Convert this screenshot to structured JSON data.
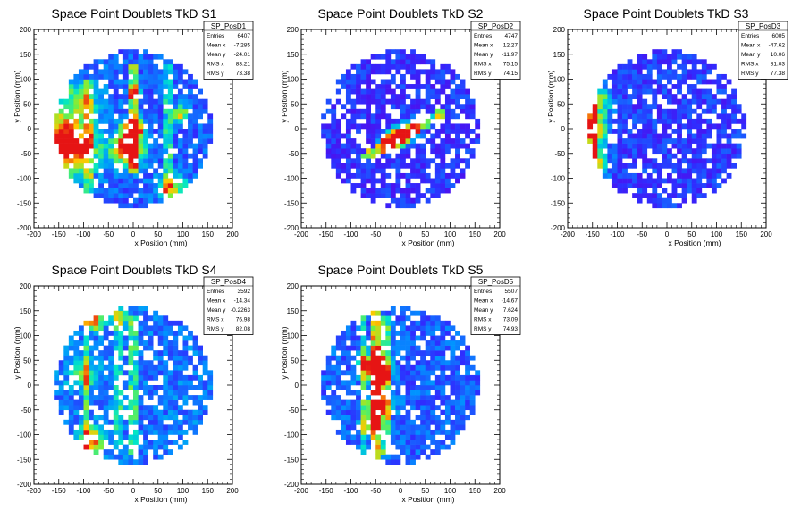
{
  "chart_data": [
    {
      "type": "heatmap",
      "title": "Space Point Doublets TkD S1",
      "xlabel": "x Position (mm)",
      "ylabel": "y Position (mm)",
      "xlim": [
        -200,
        200
      ],
      "ylim": [
        -200,
        200
      ],
      "xticks": [
        "-200",
        "-150",
        "-100",
        "-50",
        "0",
        "50",
        "100",
        "150",
        "200"
      ],
      "yticks": [
        "-200",
        "-150",
        "-100",
        "-50",
        "0",
        "50",
        "100",
        "150",
        "200"
      ],
      "stats": {
        "name": "SP_PosD1",
        "rows": [
          [
            "Entries",
            "6407"
          ],
          [
            "Mean x",
            "-7.285"
          ],
          [
            "Mean y",
            "-24.01"
          ],
          [
            "RMS x",
            "83.21"
          ],
          [
            "RMS y",
            "73.38"
          ]
        ]
      },
      "hotspots": [
        [
          -150,
          -20,
          45,
          0.55
        ],
        [
          -120,
          -40,
          35,
          0.45
        ],
        [
          0,
          0,
          14,
          0.95
        ],
        [
          -10,
          -40,
          22,
          0.85
        ],
        [
          5,
          70,
          8,
          0.6
        ],
        [
          95,
          30,
          12,
          0.5
        ],
        [
          80,
          -120,
          20,
          0.5
        ],
        [
          -110,
          60,
          25,
          0.35
        ]
      ],
      "lines": [
        [
          0,
          -80,
          0,
          120,
          0.55
        ],
        [
          -90,
          -140,
          -90,
          90,
          0.3
        ],
        [
          70,
          -120,
          70,
          120,
          0.3
        ]
      ],
      "base": 0.18,
      "sparsity": 0.12
    },
    {
      "type": "heatmap",
      "title": "Space Point Doublets TkD S2",
      "xlabel": "x Position (mm)",
      "ylabel": "y Position (mm)",
      "xlim": [
        -200,
        200
      ],
      "ylim": [
        -200,
        200
      ],
      "xticks": [
        "-200",
        "-150",
        "-100",
        "-50",
        "0",
        "50",
        "100",
        "150",
        "200"
      ],
      "yticks": [
        "-200",
        "-150",
        "-100",
        "-50",
        "0",
        "50",
        "100",
        "150",
        "200"
      ],
      "stats": {
        "name": "SP_PosD2",
        "rows": [
          [
            "Entries",
            "4747"
          ],
          [
            "Mean x",
            "12.27"
          ],
          [
            "Mean y",
            "-11.97"
          ],
          [
            "RMS x",
            "75.15"
          ],
          [
            "RMS y",
            "74.15"
          ]
        ]
      },
      "hotspots": [
        [
          0,
          -15,
          12,
          0.95
        ],
        [
          -20,
          -25,
          14,
          0.7
        ],
        [
          20,
          -5,
          14,
          0.6
        ]
      ],
      "lines": [
        [
          -70,
          -55,
          80,
          30,
          0.6
        ]
      ],
      "base": 0.08,
      "sparsity": 0.28
    },
    {
      "type": "heatmap",
      "title": "Space Point Doublets TkD S3",
      "xlabel": "x Position (mm)",
      "ylabel": "y Position (mm)",
      "xlim": [
        -200,
        200
      ],
      "ylim": [
        -200,
        200
      ],
      "xticks": [
        "-200",
        "-150",
        "-100",
        "-50",
        "0",
        "50",
        "100",
        "150",
        "200"
      ],
      "yticks": [
        "-200",
        "-150",
        "-100",
        "-50",
        "0",
        "50",
        "100",
        "150",
        "200"
      ],
      "stats": {
        "name": "SP_PosD3",
        "rows": [
          [
            "Entries",
            "6005"
          ],
          [
            "Mean x",
            "-47.62"
          ],
          [
            "Mean y",
            "10.06"
          ],
          [
            "RMS x",
            "81.03"
          ],
          [
            "RMS y",
            "77.38"
          ]
        ]
      },
      "hotspots": [
        [
          -160,
          0,
          25,
          0.9
        ],
        [
          -150,
          -70,
          20,
          0.7
        ],
        [
          -140,
          60,
          20,
          0.5
        ],
        [
          -150,
          -110,
          15,
          0.4
        ]
      ],
      "lines": [
        [
          -145,
          -120,
          -145,
          120,
          0.45
        ]
      ],
      "base": 0.1,
      "sparsity": 0.2
    },
    {
      "type": "heatmap",
      "title": "Space Point Doublets TkD S4",
      "xlabel": "x Position (mm)",
      "ylabel": "y Position (mm)",
      "xlim": [
        -200,
        200
      ],
      "ylim": [
        -200,
        200
      ],
      "xticks": [
        "-200",
        "-150",
        "-100",
        "-50",
        "0",
        "50",
        "100",
        "150",
        "200"
      ],
      "yticks": [
        "-200",
        "-150",
        "-100",
        "-50",
        "0",
        "50",
        "100",
        "150",
        "200"
      ],
      "stats": {
        "name": "SP_PosD4",
        "rows": [
          [
            "Entries",
            "3592"
          ],
          [
            "Mean x",
            "-14.34"
          ],
          [
            "Mean y",
            "-0.2263"
          ],
          [
            "RMS x",
            "76.98"
          ],
          [
            "RMS y",
            "82.08"
          ]
        ]
      },
      "hotspots": [
        [
          -85,
          -110,
          18,
          0.7
        ],
        [
          -80,
          130,
          14,
          0.6
        ],
        [
          -100,
          20,
          20,
          0.35
        ],
        [
          -30,
          140,
          12,
          0.5
        ]
      ],
      "lines": [
        [
          -95,
          -140,
          -95,
          140,
          0.35
        ],
        [
          0,
          -130,
          0,
          130,
          0.3
        ],
        [
          -30,
          -120,
          -30,
          120,
          0.25
        ]
      ],
      "base": 0.22,
      "sparsity": 0.22
    },
    {
      "type": "heatmap",
      "title": "Space Point Doublets TkD S5",
      "xlabel": "x Position (mm)",
      "ylabel": "y Position (mm)",
      "xlim": [
        -200,
        200
      ],
      "ylim": [
        -200,
        200
      ],
      "xticks": [
        "-200",
        "-150",
        "-100",
        "-50",
        "0",
        "50",
        "100",
        "150",
        "200"
      ],
      "yticks": [
        "-200",
        "-150",
        "-100",
        "-50",
        "0",
        "50",
        "100",
        "150",
        "200"
      ],
      "stats": {
        "name": "SP_PosD5",
        "rows": [
          [
            "Entries",
            "5507"
          ],
          [
            "Mean x",
            "-14.67"
          ],
          [
            "Mean y",
            "7.624"
          ],
          [
            "RMS x",
            "73.09"
          ],
          [
            "RMS y",
            "74.93"
          ]
        ]
      },
      "hotspots": [
        [
          -55,
          40,
          18,
          0.85
        ],
        [
          -40,
          20,
          14,
          0.8
        ],
        [
          -45,
          -40,
          18,
          0.6
        ],
        [
          -60,
          -80,
          14,
          0.5
        ]
      ],
      "lines": [
        [
          -50,
          -140,
          -50,
          140,
          0.6
        ],
        [
          -75,
          -130,
          -75,
          130,
          0.35
        ],
        [
          -30,
          -130,
          -30,
          130,
          0.4
        ]
      ],
      "base": 0.18,
      "sparsity": 0.2
    }
  ]
}
